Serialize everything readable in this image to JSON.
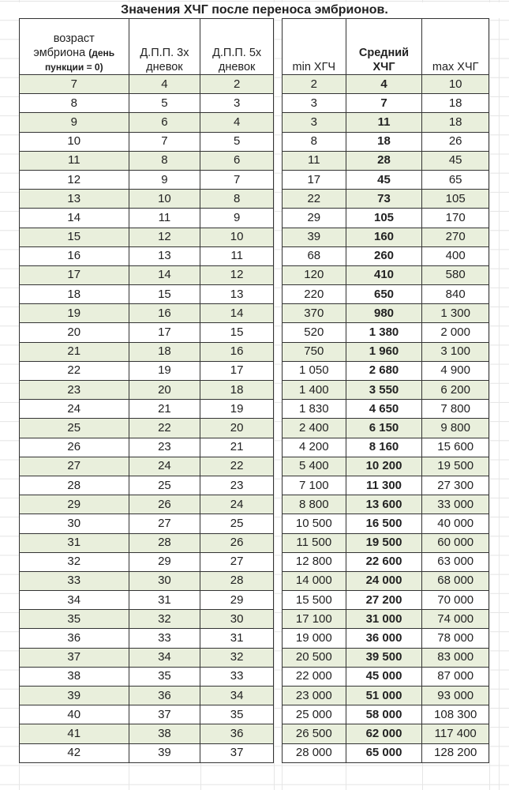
{
  "title": "Значения ХЧГ после переноса эмбрионов.",
  "headers": {
    "age_line1": "возраст",
    "age_line2": "эмбриона",
    "age_line2_small": "(день",
    "age_line3_small": "пункции = 0)",
    "dpp3_line1": "Д.П.П. 3х",
    "dpp3_line2": "дневок",
    "dpp5_line1": "Д.П.П. 5х",
    "dpp5_line2": "дневок",
    "min": "min ХГЧ",
    "avg_line1": "Средний",
    "avg_line2": "ХЧГ",
    "max": "max ХЧГ"
  },
  "colors": {
    "row_alt": "#e9efdc",
    "border": "#333333"
  },
  "rows": [
    [
      "7",
      "4",
      "2",
      "2",
      "4",
      "10"
    ],
    [
      "8",
      "5",
      "3",
      "3",
      "7",
      "18"
    ],
    [
      "9",
      "6",
      "4",
      "3",
      "11",
      "18"
    ],
    [
      "10",
      "7",
      "5",
      "8",
      "18",
      "26"
    ],
    [
      "11",
      "8",
      "6",
      "11",
      "28",
      "45"
    ],
    [
      "12",
      "9",
      "7",
      "17",
      "45",
      "65"
    ],
    [
      "13",
      "10",
      "8",
      "22",
      "73",
      "105"
    ],
    [
      "14",
      "11",
      "9",
      "29",
      "105",
      "170"
    ],
    [
      "15",
      "12",
      "10",
      "39",
      "160",
      "270"
    ],
    [
      "16",
      "13",
      "11",
      "68",
      "260",
      "400"
    ],
    [
      "17",
      "14",
      "12",
      "120",
      "410",
      "580"
    ],
    [
      "18",
      "15",
      "13",
      "220",
      "650",
      "840"
    ],
    [
      "19",
      "16",
      "14",
      "370",
      "980",
      "1 300"
    ],
    [
      "20",
      "17",
      "15",
      "520",
      "1 380",
      "2 000"
    ],
    [
      "21",
      "18",
      "16",
      "750",
      "1 960",
      "3 100"
    ],
    [
      "22",
      "19",
      "17",
      "1 050",
      "2 680",
      "4 900"
    ],
    [
      "23",
      "20",
      "18",
      "1 400",
      "3 550",
      "6 200"
    ],
    [
      "24",
      "21",
      "19",
      "1 830",
      "4 650",
      "7 800"
    ],
    [
      "25",
      "22",
      "20",
      "2 400",
      "6 150",
      "9 800"
    ],
    [
      "26",
      "23",
      "21",
      "4 200",
      "8 160",
      "15 600"
    ],
    [
      "27",
      "24",
      "22",
      "5 400",
      "10 200",
      "19 500"
    ],
    [
      "28",
      "25",
      "23",
      "7 100",
      "11 300",
      "27 300"
    ],
    [
      "29",
      "26",
      "24",
      "8 800",
      "13 600",
      "33 000"
    ],
    [
      "30",
      "27",
      "25",
      "10 500",
      "16 500",
      "40 000"
    ],
    [
      "31",
      "28",
      "26",
      "11 500",
      "19 500",
      "60 000"
    ],
    [
      "32",
      "29",
      "27",
      "12 800",
      "22 600",
      "63 000"
    ],
    [
      "33",
      "30",
      "28",
      "14 000",
      "24 000",
      "68 000"
    ],
    [
      "34",
      "31",
      "29",
      "15 500",
      "27 200",
      "70 000"
    ],
    [
      "35",
      "32",
      "30",
      "17 100",
      "31 000",
      "74 000"
    ],
    [
      "36",
      "33",
      "31",
      "19 000",
      "36 000",
      "78 000"
    ],
    [
      "37",
      "34",
      "32",
      "20 500",
      "39 500",
      "83 000"
    ],
    [
      "38",
      "35",
      "33",
      "22 000",
      "45 000",
      "87 000"
    ],
    [
      "39",
      "36",
      "34",
      "23 000",
      "51 000",
      "93 000"
    ],
    [
      "40",
      "37",
      "35",
      "25 000",
      "58 000",
      "108 300"
    ],
    [
      "41",
      "38",
      "36",
      "26 500",
      "62 000",
      "117 400"
    ],
    [
      "42",
      "39",
      "37",
      "28 000",
      "65 000",
      "128 200"
    ]
  ]
}
